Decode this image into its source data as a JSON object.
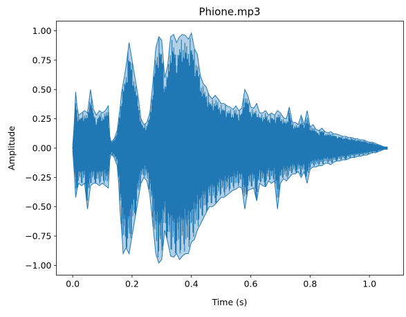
{
  "chart_data": {
    "type": "line",
    "title": "Phione.mp3",
    "xlabel": "Time (s)",
    "ylabel": "Amplitude",
    "xlim": [
      -0.055,
      1.115
    ],
    "ylim": [
      -1.083,
      1.083
    ],
    "xticks": [
      0.0,
      0.2,
      0.4,
      0.6,
      0.8,
      1.0
    ],
    "xtick_labels": [
      "0.0",
      "0.2",
      "0.4",
      "0.6",
      "0.8",
      "1.0"
    ],
    "yticks": [
      -1.0,
      -0.75,
      -0.5,
      -0.25,
      0.0,
      0.25,
      0.5,
      0.75,
      1.0
    ],
    "ytick_labels": [
      "−1.00",
      "−0.75",
      "−0.50",
      "−0.25",
      "0.00",
      "0.25",
      "0.50",
      "0.75",
      "1.00"
    ],
    "grid": false,
    "series": [
      {
        "color": "#1f77b4",
        "description": "audio waveform envelope (upper/lower amplitude per time bin)",
        "x": [
          0.0,
          0.005,
          0.01,
          0.015,
          0.02,
          0.03,
          0.04,
          0.05,
          0.06,
          0.07,
          0.08,
          0.09,
          0.1,
          0.11,
          0.12,
          0.125,
          0.13,
          0.14,
          0.15,
          0.155,
          0.16,
          0.165,
          0.17,
          0.18,
          0.19,
          0.2,
          0.21,
          0.22,
          0.23,
          0.24,
          0.25,
          0.26,
          0.27,
          0.28,
          0.29,
          0.3,
          0.31,
          0.32,
          0.33,
          0.34,
          0.35,
          0.36,
          0.37,
          0.38,
          0.39,
          0.4,
          0.41,
          0.42,
          0.43,
          0.44,
          0.45,
          0.46,
          0.47,
          0.48,
          0.49,
          0.5,
          0.51,
          0.52,
          0.53,
          0.54,
          0.55,
          0.56,
          0.57,
          0.58,
          0.59,
          0.6,
          0.61,
          0.62,
          0.63,
          0.64,
          0.65,
          0.66,
          0.67,
          0.68,
          0.69,
          0.7,
          0.71,
          0.72,
          0.73,
          0.74,
          0.75,
          0.76,
          0.77,
          0.78,
          0.79,
          0.8,
          0.81,
          0.82,
          0.83,
          0.84,
          0.85,
          0.86,
          0.87,
          0.88,
          0.89,
          0.9,
          0.91,
          0.92,
          0.93,
          0.94,
          0.95,
          0.96,
          0.97,
          0.98,
          0.99,
          1.0,
          1.01,
          1.02,
          1.03,
          1.04,
          1.05,
          1.06
        ],
        "upper": [
          0.02,
          0.2,
          0.48,
          0.35,
          0.28,
          0.3,
          0.32,
          0.3,
          0.5,
          0.33,
          0.28,
          0.32,
          0.3,
          0.32,
          0.36,
          0.1,
          0.05,
          0.08,
          0.15,
          0.25,
          0.35,
          0.48,
          0.55,
          0.7,
          0.9,
          0.75,
          0.6,
          0.45,
          0.25,
          0.2,
          0.22,
          0.3,
          0.55,
          0.85,
          0.95,
          0.92,
          0.6,
          0.7,
          0.95,
          0.97,
          0.9,
          0.95,
          0.97,
          0.96,
          0.93,
          0.98,
          0.85,
          0.8,
          0.62,
          0.55,
          0.52,
          0.45,
          0.42,
          0.45,
          0.42,
          0.38,
          0.38,
          0.36,
          0.35,
          0.33,
          0.36,
          0.32,
          0.34,
          0.5,
          0.45,
          0.35,
          0.34,
          0.38,
          0.3,
          0.3,
          0.32,
          0.28,
          0.3,
          0.28,
          0.32,
          0.3,
          0.26,
          0.25,
          0.35,
          0.22,
          0.22,
          0.2,
          0.28,
          0.2,
          0.32,
          0.18,
          0.2,
          0.16,
          0.15,
          0.17,
          0.14,
          0.13,
          0.14,
          0.12,
          0.12,
          0.11,
          0.1,
          0.1,
          0.09,
          0.09,
          0.08,
          0.08,
          0.07,
          0.07,
          0.06,
          0.05,
          0.05,
          0.04,
          0.03,
          0.02,
          0.01,
          0.01
        ],
        "lower": [
          -0.02,
          -0.2,
          -0.42,
          -0.35,
          -0.3,
          -0.32,
          -0.3,
          -0.52,
          -0.32,
          -0.3,
          -0.3,
          -0.32,
          -0.3,
          -0.32,
          -0.34,
          -0.1,
          -0.05,
          -0.08,
          -0.15,
          -0.3,
          -0.55,
          -0.7,
          -0.9,
          -0.85,
          -0.9,
          -0.75,
          -0.6,
          -0.45,
          -0.3,
          -0.25,
          -0.28,
          -0.4,
          -0.65,
          -0.9,
          -0.98,
          -0.95,
          -0.7,
          -0.8,
          -0.92,
          -0.93,
          -0.9,
          -0.95,
          -0.92,
          -0.9,
          -0.9,
          -0.8,
          -0.78,
          -0.7,
          -0.65,
          -0.6,
          -0.55,
          -0.5,
          -0.5,
          -0.48,
          -0.45,
          -0.42,
          -0.42,
          -0.4,
          -0.38,
          -0.36,
          -0.35,
          -0.33,
          -0.34,
          -0.52,
          -0.36,
          -0.35,
          -0.34,
          -0.45,
          -0.3,
          -0.32,
          -0.33,
          -0.28,
          -0.3,
          -0.28,
          -0.52,
          -0.3,
          -0.26,
          -0.28,
          -0.25,
          -0.22,
          -0.22,
          -0.2,
          -0.25,
          -0.2,
          -0.3,
          -0.18,
          -0.16,
          -0.16,
          -0.15,
          -0.15,
          -0.13,
          -0.13,
          -0.14,
          -0.12,
          -0.11,
          -0.11,
          -0.1,
          -0.1,
          -0.09,
          -0.08,
          -0.08,
          -0.07,
          -0.07,
          -0.06,
          -0.06,
          -0.05,
          -0.04,
          -0.04,
          -0.03,
          -0.02,
          -0.01,
          -0.01
        ]
      }
    ]
  }
}
